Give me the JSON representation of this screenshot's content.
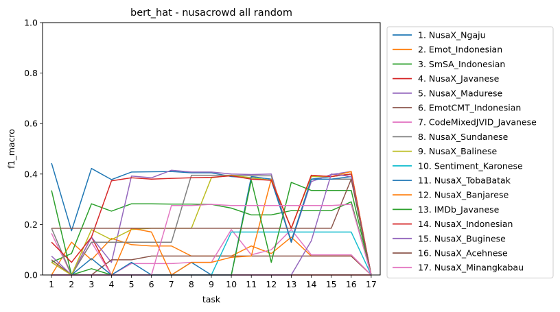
{
  "chart_data": {
    "type": "line",
    "title": "bert_hat - nusacrowd all random",
    "xlabel": "task",
    "ylabel": "f1_macro",
    "xlim": [
      0.55,
      17.45
    ],
    "ylim": [
      0,
      1
    ],
    "x": [
      1,
      2,
      3,
      4,
      5,
      6,
      7,
      8,
      9,
      10,
      11,
      12,
      13,
      14,
      15,
      16,
      17
    ],
    "xticks": [
      "1",
      "2",
      "3",
      "4",
      "5",
      "6",
      "7",
      "8",
      "9",
      "10",
      "11",
      "12",
      "13",
      "14",
      "15",
      "16",
      "17"
    ],
    "yticks": [
      "0.0",
      "0.2",
      "0.4",
      "0.6",
      "0.8",
      "1.0"
    ],
    "grid": false,
    "legend_position": "outside-right",
    "series": [
      {
        "name": "1. NusaX_Ngaju",
        "color": "#1f77b4",
        "values": [
          0.443,
          0.175,
          0.422,
          0.378,
          0.408,
          0.409,
          0.41,
          0.405,
          0.405,
          0.39,
          0.385,
          0.375,
          0.135,
          0.38,
          0.39,
          0.4,
          0.0
        ]
      },
      {
        "name": "2. Emot_Indonesian",
        "color": "#ff7f0e",
        "values": [
          0.0,
          0.13,
          0.06,
          0.145,
          0.12,
          0.115,
          0.115,
          0.075,
          0.075,
          0.075,
          0.115,
          0.085,
          0.15,
          0.075,
          0.075,
          0.075,
          0.0
        ]
      },
      {
        "name": "3. SmSA_Indonesian",
        "color": "#2ca02c",
        "values": [
          0.05,
          0.085,
          0.282,
          0.253,
          0.282,
          0.282,
          0.281,
          0.281,
          0.28,
          0.265,
          0.238,
          0.238,
          0.255,
          0.255,
          0.255,
          0.29,
          0.0
        ]
      },
      {
        "name": "4. NusaX_Javanese",
        "color": "#d62728",
        "values": [
          0.05,
          0.0,
          0.15,
          0.0,
          0.0,
          0.0,
          0.0,
          0.0,
          0.0,
          0.0,
          0.0,
          0.0,
          0.0,
          0.0,
          0.0,
          0.0,
          0.0
        ]
      },
      {
        "name": "5. NusaX_Madurese",
        "color": "#9467bd",
        "values": [
          0.075,
          0.0,
          0.15,
          0.05,
          0.392,
          0.385,
          0.415,
          0.408,
          0.408,
          0.4,
          0.398,
          0.4,
          0.13,
          0.37,
          0.398,
          0.41,
          0.0
        ]
      },
      {
        "name": "6. EmotCMT_Indonesian",
        "color": "#8c564b",
        "values": [
          0.06,
          0.0,
          0.0,
          0.06,
          0.06,
          0.075,
          0.075,
          0.075,
          0.075,
          0.075,
          0.075,
          0.075,
          0.075,
          0.075,
          0.075,
          0.075,
          0.0
        ]
      },
      {
        "name": "7. CodeMixedJVID_Javanese",
        "color": "#e377c2",
        "values": [
          0.165,
          0.0,
          0.13,
          0.0,
          0.045,
          0.045,
          0.045,
          0.05,
          0.05,
          0.18,
          0.08,
          0.1,
          0.18,
          0.08,
          0.08,
          0.08,
          0.0
        ]
      },
      {
        "name": "8. NusaX_Sundanese",
        "color": "#7f7f7f",
        "values": [
          0.185,
          0.0,
          0.13,
          0.13,
          0.13,
          0.13,
          0.13,
          0.395,
          0.395,
          0.395,
          0.393,
          0.393,
          0.13,
          0.38,
          0.38,
          0.38,
          0.0
        ]
      },
      {
        "name": "9. NusaX_Balinese",
        "color": "#bcbd22",
        "values": [
          0.05,
          0.0,
          0.18,
          0.14,
          0.18,
          0.185,
          0.185,
          0.185,
          0.385,
          0.395,
          0.385,
          0.375,
          0.185,
          0.39,
          0.39,
          0.4,
          0.0
        ]
      },
      {
        "name": "10. Sentiment_Karonese",
        "color": "#17becf",
        "values": [
          0.0,
          0.0,
          0.0,
          0.0,
          0.0,
          0.0,
          0.0,
          0.0,
          0.0,
          0.17,
          0.17,
          0.17,
          0.17,
          0.17,
          0.17,
          0.17,
          0.0
        ]
      },
      {
        "name": "11. NusaX_TobaBatak",
        "color": "#1f77b4",
        "values": [
          0.0,
          0.0,
          0.065,
          0.0,
          0.05,
          0.0,
          0.0,
          0.05,
          0.0,
          0.0,
          0.39,
          0.38,
          0.13,
          0.38,
          0.38,
          0.39,
          0.0
        ]
      },
      {
        "name": "12. NusaX_Banjarese",
        "color": "#ff7f0e",
        "values": [
          0.0,
          0.0,
          0.0,
          0.0,
          0.185,
          0.17,
          0.0,
          0.05,
          0.05,
          0.07,
          0.075,
          0.38,
          0.185,
          0.395,
          0.39,
          0.41,
          0.0
        ]
      },
      {
        "name": "13. IMDb_Javanese",
        "color": "#2ca02c",
        "values": [
          0.335,
          0.0,
          0.025,
          0.0,
          0.0,
          0.0,
          0.0,
          0.0,
          0.0,
          0.0,
          0.375,
          0.05,
          0.367,
          0.335,
          0.335,
          0.335,
          0.0
        ]
      },
      {
        "name": "14. NusaX_Indonesian",
        "color": "#d62728",
        "values": [
          0.13,
          0.05,
          0.15,
          0.373,
          0.385,
          0.38,
          0.383,
          0.385,
          0.387,
          0.393,
          0.38,
          0.375,
          0.185,
          0.395,
          0.39,
          0.4,
          0.0
        ]
      },
      {
        "name": "15. NusaX_Buginese",
        "color": "#9467bd",
        "values": [
          0.0,
          0.0,
          0.0,
          0.0,
          0.0,
          0.0,
          0.0,
          0.0,
          0.0,
          0.0,
          0.0,
          0.0,
          0.0,
          0.135,
          0.4,
          0.39,
          0.0
        ]
      },
      {
        "name": "16. NusaX_Acehnese",
        "color": "#8c564b",
        "values": [
          0.185,
          0.185,
          0.185,
          0.185,
          0.185,
          0.185,
          0.185,
          0.185,
          0.185,
          0.185,
          0.185,
          0.185,
          0.185,
          0.185,
          0.185,
          0.38,
          0.0
        ]
      },
      {
        "name": "17. NusaX_Minangkabau",
        "color": "#e377c2",
        "values": [
          0.0,
          0.0,
          0.0,
          0.0,
          0.0,
          0.0,
          0.275,
          0.275,
          0.28,
          0.275,
          0.275,
          0.275,
          0.275,
          0.275,
          0.275,
          0.28,
          0.0
        ]
      }
    ]
  }
}
